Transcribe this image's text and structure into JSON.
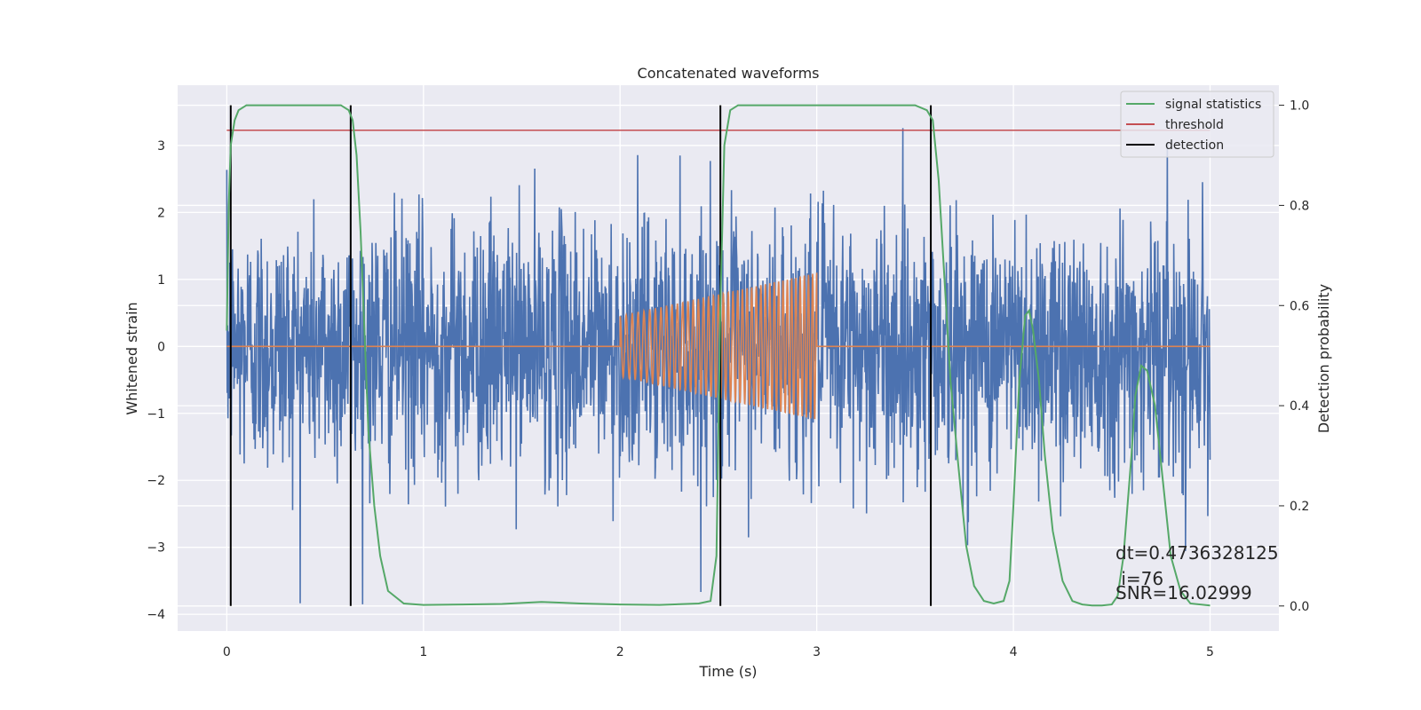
{
  "chart_data": {
    "type": "line",
    "title": "Concatenated waveforms",
    "xlabel": "Time (s)",
    "ylabel": "Whitened strain",
    "y2label": "Detection probability",
    "xlim": [
      -0.25,
      5.35
    ],
    "ylim": [
      -4.25,
      3.9
    ],
    "y2lim": [
      -0.05,
      1.04
    ],
    "xticks": [
      0,
      1,
      2,
      3,
      4,
      5
    ],
    "yticks": [
      -4,
      -3,
      -2,
      -1,
      0,
      1,
      2,
      3
    ],
    "y2ticks": [
      0.0,
      0.2,
      0.4,
      0.6,
      0.8,
      1.0
    ],
    "xtick_labels": [
      "0",
      "1",
      "2",
      "3",
      "4",
      "5"
    ],
    "ytick_labels": [
      "−4",
      "−3",
      "−2",
      "−1",
      "0",
      "1",
      "2",
      "3"
    ],
    "y2tick_labels": [
      "0.0",
      "0.2",
      "0.4",
      "0.6",
      "0.8",
      "1.0"
    ],
    "grid": true,
    "legend_position": "top-right",
    "noise": {
      "color": "#4c72b0",
      "t_start": 0.0,
      "t_end": 5.0,
      "axis": "left"
    },
    "template": {
      "color": "#dd8452",
      "t_start": 0.0,
      "t_end": 5.0,
      "chirp_start": 2.0,
      "chirp_end": 3.0,
      "amplitude_start": 0.45,
      "amplitude_end": 1.1,
      "axis": "left"
    },
    "series": [
      {
        "name": "signal statistics",
        "color": "#55a868",
        "axis": "right",
        "x": [
          0.0,
          0.01,
          0.02,
          0.04,
          0.06,
          0.1,
          0.2,
          0.4,
          0.58,
          0.62,
          0.64,
          0.66,
          0.68,
          0.7,
          0.72,
          0.75,
          0.78,
          0.82,
          0.9,
          1.0,
          1.2,
          1.4,
          1.6,
          1.8,
          2.0,
          2.2,
          2.4,
          2.46,
          2.49,
          2.51,
          2.53,
          2.56,
          2.6,
          2.8,
          3.0,
          3.2,
          3.5,
          3.56,
          3.59,
          3.62,
          3.65,
          3.68,
          3.72,
          3.76,
          3.8,
          3.85,
          3.9,
          3.95,
          3.98,
          4.0,
          4.03,
          4.06,
          4.08,
          4.1,
          4.13,
          4.16,
          4.2,
          4.25,
          4.3,
          4.35,
          4.4,
          4.45,
          4.5,
          4.53,
          4.56,
          4.6,
          4.62,
          4.65,
          4.68,
          4.72,
          4.76,
          4.8,
          4.85,
          4.9,
          5.0
        ],
        "y": [
          0.55,
          0.8,
          0.92,
          0.97,
          0.99,
          1.0,
          1.0,
          1.0,
          1.0,
          0.99,
          0.97,
          0.9,
          0.75,
          0.55,
          0.35,
          0.2,
          0.1,
          0.03,
          0.005,
          0.002,
          0.003,
          0.004,
          0.008,
          0.005,
          0.003,
          0.002,
          0.005,
          0.01,
          0.1,
          0.6,
          0.92,
          0.99,
          1.0,
          1.0,
          1.0,
          1.0,
          1.0,
          0.99,
          0.97,
          0.85,
          0.65,
          0.45,
          0.28,
          0.12,
          0.04,
          0.01,
          0.005,
          0.01,
          0.05,
          0.2,
          0.45,
          0.58,
          0.59,
          0.55,
          0.45,
          0.3,
          0.15,
          0.05,
          0.01,
          0.003,
          0.001,
          0.001,
          0.003,
          0.02,
          0.1,
          0.3,
          0.42,
          0.48,
          0.47,
          0.4,
          0.25,
          0.1,
          0.03,
          0.005,
          0.001
        ]
      },
      {
        "name": "threshold",
        "color": "#c44e52",
        "axis": "right",
        "x": [
          0.0,
          5.0
        ],
        "y": [
          0.95,
          0.95
        ]
      },
      {
        "name": "detection",
        "color": "#000000",
        "axis": "right",
        "type": "vlines",
        "x": [
          0.02,
          0.63,
          2.51,
          3.58
        ],
        "y_range": [
          0.0,
          1.0
        ]
      }
    ],
    "annotation": {
      "lines": [
        "dt=0.4736328125",
        " i=76",
        "SNR=16.02999"
      ],
      "position": "bottom-right"
    }
  }
}
